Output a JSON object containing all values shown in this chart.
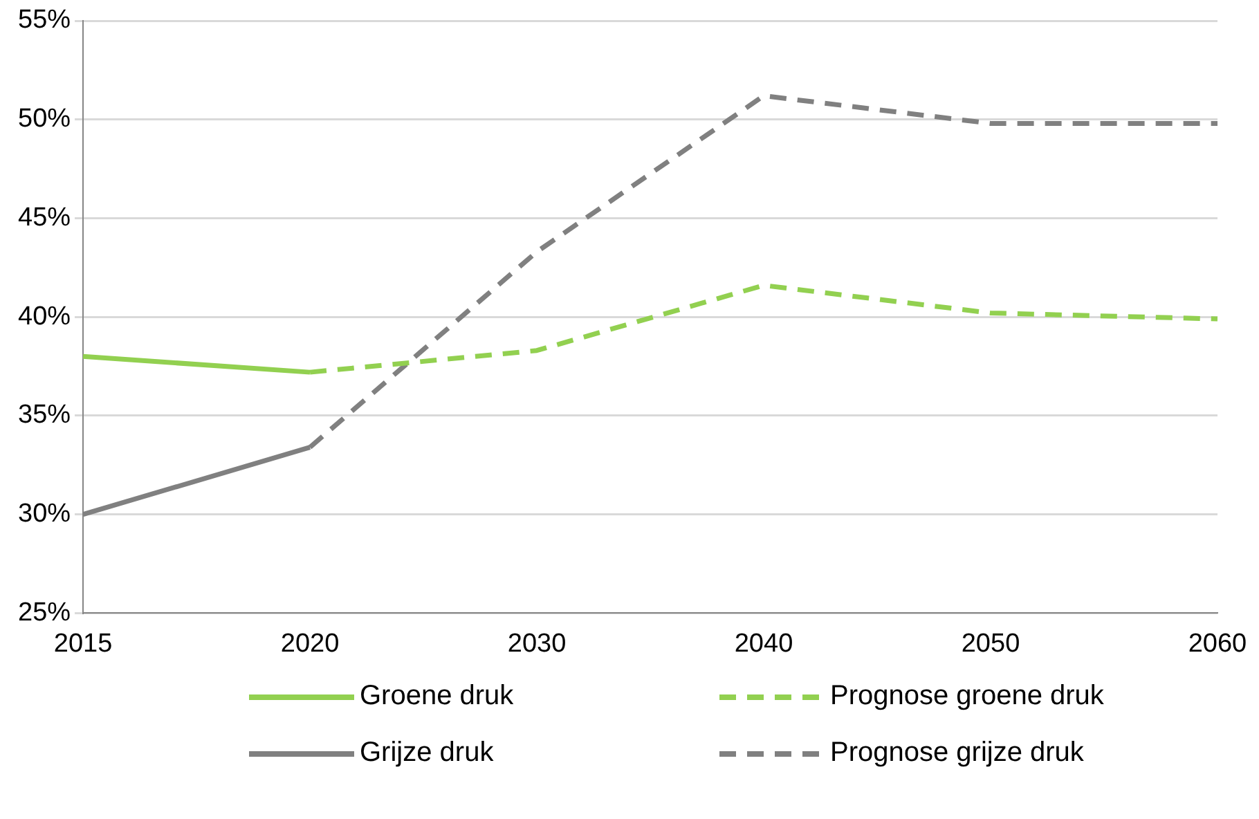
{
  "chart_data": {
    "type": "line",
    "categories": [
      "2015",
      "2020",
      "2030",
      "2040",
      "2050",
      "2060"
    ],
    "ylim": [
      25,
      55
    ],
    "yticks": [
      {
        "value": 25,
        "label": "25%"
      },
      {
        "value": 30,
        "label": "30%"
      },
      {
        "value": 35,
        "label": "35%"
      },
      {
        "value": 40,
        "label": "40%"
      },
      {
        "value": 45,
        "label": "45%"
      },
      {
        "value": 50,
        "label": "50%"
      },
      {
        "value": 55,
        "label": "55%"
      }
    ],
    "grid": "y",
    "legend": "bottom",
    "marker": "none",
    "series": [
      {
        "name": "Groene druk",
        "color": "#92d050",
        "line_style": "solid",
        "values": [
          38.0,
          37.2,
          null,
          null,
          null,
          null
        ]
      },
      {
        "name": "Prognose groene druk",
        "color": "#92d050",
        "line_style": "dashed",
        "values": [
          null,
          37.2,
          38.3,
          41.6,
          40.2,
          39.9
        ]
      },
      {
        "name": "Grijze druk",
        "color": "#808080",
        "line_style": "solid",
        "values": [
          30.0,
          33.4,
          null,
          null,
          null,
          null
        ]
      },
      {
        "name": "Prognose grijze druk",
        "color": "#808080",
        "line_style": "dashed",
        "values": [
          null,
          33.4,
          43.3,
          51.2,
          49.8,
          49.8
        ]
      }
    ]
  }
}
